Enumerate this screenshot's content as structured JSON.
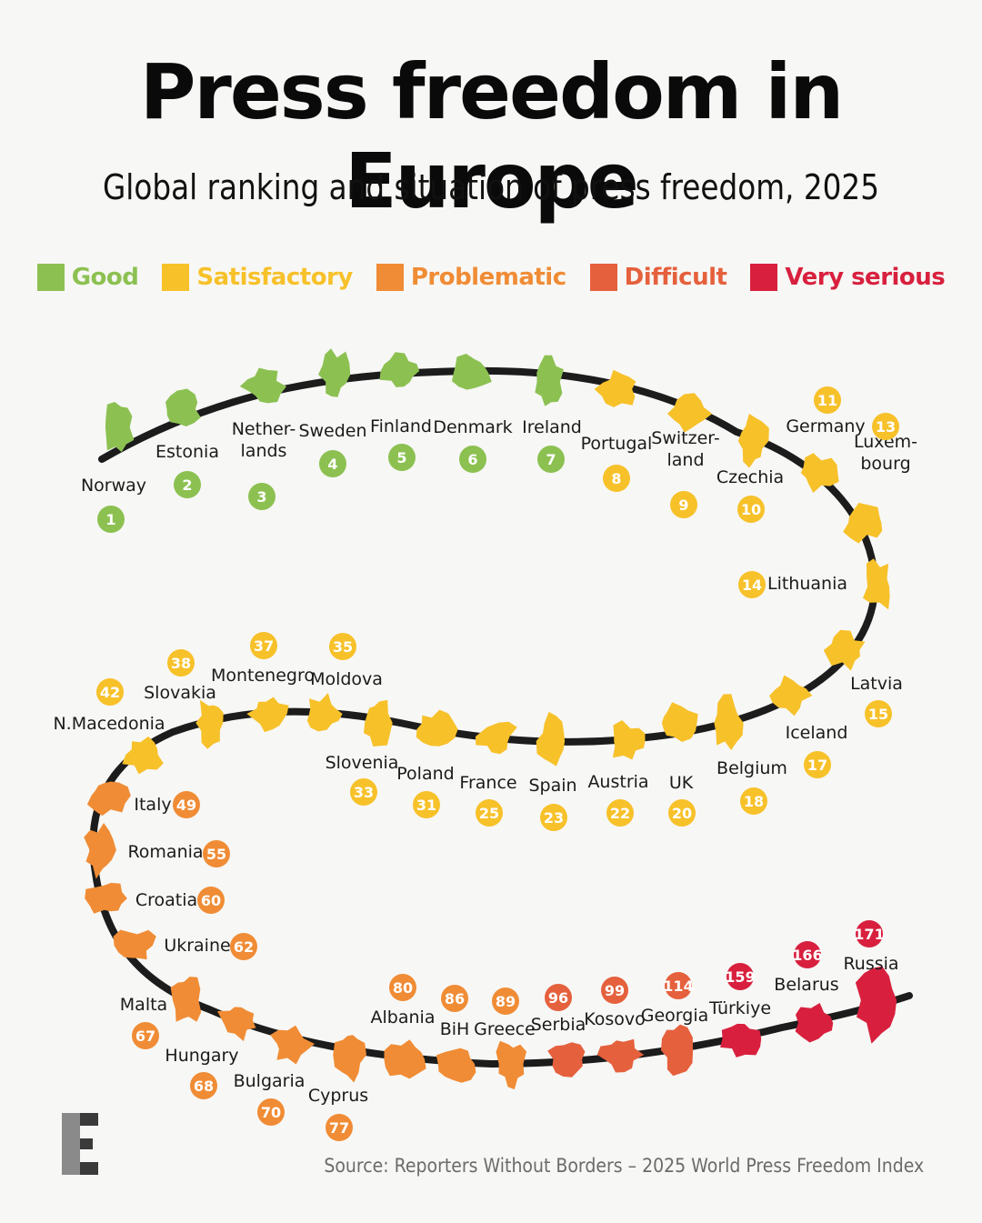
{
  "title": "Press freedom in Europe",
  "subtitle": "Global ranking and situation of press freedom, 2025",
  "legend": [
    {
      "label": "Good",
      "color": "#8cc152"
    },
    {
      "label": "Satisfactory",
      "color": "#f7c12a"
    },
    {
      "label": "Problematic",
      "color": "#f08c35"
    },
    {
      "label": "Difficult",
      "color": "#e5603c"
    },
    {
      "label": "Very serious",
      "color": "#d8203e"
    }
  ],
  "countries": [
    {
      "name": "Norway",
      "rank": "1",
      "category": "Good"
    },
    {
      "name": "Estonia",
      "rank": "2",
      "category": "Good"
    },
    {
      "name": "Nether-|lands",
      "rank": "3",
      "category": "Good"
    },
    {
      "name": "Sweden",
      "rank": "4",
      "category": "Good"
    },
    {
      "name": "Finland",
      "rank": "5",
      "category": "Good"
    },
    {
      "name": "Denmark",
      "rank": "6",
      "category": "Good"
    },
    {
      "name": "Ireland",
      "rank": "7",
      "category": "Good"
    },
    {
      "name": "Portugal",
      "rank": "8",
      "category": "Satisfactory"
    },
    {
      "name": "Switzer-|land",
      "rank": "9",
      "category": "Satisfactory"
    },
    {
      "name": "Czechia",
      "rank": "10",
      "category": "Satisfactory"
    },
    {
      "name": "Germany",
      "rank": "11",
      "category": "Satisfactory"
    },
    {
      "name": "Luxem-|bourg",
      "rank": "13",
      "category": "Satisfactory"
    },
    {
      "name": "Lithuania",
      "rank": "14",
      "category": "Satisfactory"
    },
    {
      "name": "Latvia",
      "rank": "15",
      "category": "Satisfactory"
    },
    {
      "name": "Iceland",
      "rank": "17",
      "category": "Satisfactory"
    },
    {
      "name": "Belgium",
      "rank": "18",
      "category": "Satisfactory"
    },
    {
      "name": "UK",
      "rank": "20",
      "category": "Satisfactory"
    },
    {
      "name": "Austria",
      "rank": "22",
      "category": "Satisfactory"
    },
    {
      "name": "Spain",
      "rank": "23",
      "category": "Satisfactory"
    },
    {
      "name": "France",
      "rank": "25",
      "category": "Satisfactory"
    },
    {
      "name": "Poland",
      "rank": "31",
      "category": "Satisfactory"
    },
    {
      "name": "Slovenia",
      "rank": "33",
      "category": "Satisfactory"
    },
    {
      "name": "Moldova",
      "rank": "35",
      "category": "Satisfactory"
    },
    {
      "name": "Montenegro",
      "rank": "37",
      "category": "Satisfactory"
    },
    {
      "name": "Slovakia",
      "rank": "38",
      "category": "Satisfactory"
    },
    {
      "name": "N.Macedonia",
      "rank": "42",
      "category": "Satisfactory"
    },
    {
      "name": "Italy",
      "rank": "49",
      "category": "Problematic"
    },
    {
      "name": "Romania",
      "rank": "55",
      "category": "Problematic"
    },
    {
      "name": "Croatia",
      "rank": "60",
      "category": "Problematic"
    },
    {
      "name": "Ukraine",
      "rank": "62",
      "category": "Problematic"
    },
    {
      "name": "Malta",
      "rank": "67",
      "category": "Problematic"
    },
    {
      "name": "Hungary",
      "rank": "68",
      "category": "Problematic"
    },
    {
      "name": "Bulgaria",
      "rank": "70",
      "category": "Problematic"
    },
    {
      "name": "Cyprus",
      "rank": "77",
      "category": "Problematic"
    },
    {
      "name": "Albania",
      "rank": "80",
      "category": "Problematic"
    },
    {
      "name": "BiH",
      "rank": "86",
      "category": "Problematic"
    },
    {
      "name": "Greece",
      "rank": "89",
      "category": "Problematic"
    },
    {
      "name": "Serbia",
      "rank": "96",
      "category": "Difficult"
    },
    {
      "name": "Kosovo",
      "rank": "99",
      "category": "Difficult"
    },
    {
      "name": "Georgia",
      "rank": "114",
      "category": "Difficult"
    },
    {
      "name": "Türkiye",
      "rank": "159",
      "category": "Very serious"
    },
    {
      "name": "Belarus",
      "rank": "166",
      "category": "Very serious"
    },
    {
      "name": "Russia",
      "rank": "171",
      "category": "Very serious"
    }
  ],
  "logo_letter": "E",
  "source": "Source: Reporters Without Borders – 2025 World Press Freedom Index"
}
